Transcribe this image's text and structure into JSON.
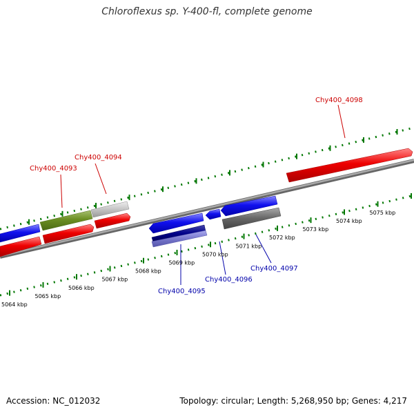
{
  "title": "Chloroflexus sp. Y-400-fl, complete genome",
  "accession_text": "Accession: NC_012032",
  "stats_text": "Topology: circular; Length: 5,268,950 bp; Genes: 4,217",
  "colors": {
    "forward_gene": "#ff0000",
    "reverse_gene": "#0000ee",
    "highlight_gene": "#6b8e23",
    "pseudo_gene": "#bbbbbb",
    "dark_gene": "#666666",
    "rna_dark": "#000088",
    "rna_light": "#7777cc",
    "backbone": "#888888",
    "ticks": "#007700",
    "forward_label": "#cc0000",
    "reverse_label": "#0000aa"
  },
  "scale_labels": [
    "5064 kbp",
    "5065 kbp",
    "5066 kbp",
    "5067 kbp",
    "5068 kbp",
    "5069 kbp",
    "5070 kbp",
    "5071 kbp",
    "5072 kbp",
    "5073 kbp",
    "5074 kbp",
    "5075 kbp"
  ],
  "gene_labels": {
    "g4093": "Chy400_4093",
    "g4094": "Chy400_4094",
    "g4098": "Chy400_4098",
    "g4095": "Chy400_4095",
    "g4096": "Chy400_4096",
    "g4097": "Chy400_4097"
  }
}
